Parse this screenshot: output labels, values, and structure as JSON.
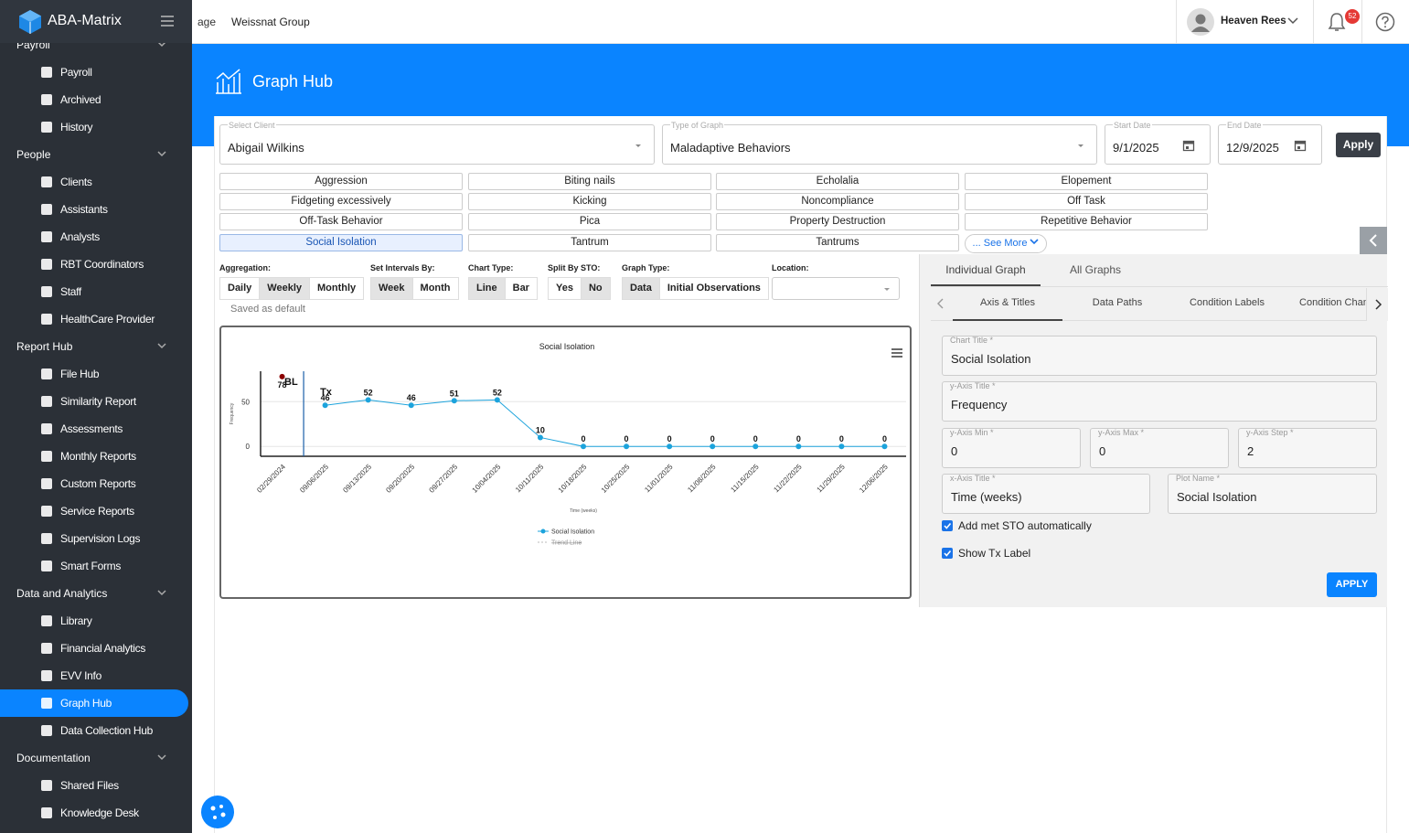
{
  "header": {
    "brand": "ABA-Matrix",
    "broken_image_alt": "age",
    "company": "Weissnat Group",
    "user": "Heaven Rees",
    "notifications": "52"
  },
  "sidebar": [
    {
      "title": "Payroll",
      "items": [
        {
          "label": "Payroll"
        },
        {
          "label": "Archived"
        },
        {
          "label": "History"
        }
      ]
    },
    {
      "title": "People",
      "items": [
        {
          "label": "Clients"
        },
        {
          "label": "Assistants"
        },
        {
          "label": "Analysts"
        },
        {
          "label": "RBT Coordinators"
        },
        {
          "label": "Staff"
        },
        {
          "label": "HealthCare Provider"
        }
      ]
    },
    {
      "title": "Report Hub",
      "items": [
        {
          "label": "File Hub"
        },
        {
          "label": "Similarity Report"
        },
        {
          "label": "Assessments"
        },
        {
          "label": "Monthly Reports"
        },
        {
          "label": "Custom Reports"
        },
        {
          "label": "Service Reports"
        },
        {
          "label": "Supervision Logs"
        },
        {
          "label": "Smart Forms"
        }
      ]
    },
    {
      "title": "Data and Analytics",
      "items": [
        {
          "label": "Library"
        },
        {
          "label": "Financial Analytics"
        },
        {
          "label": "EVV Info"
        },
        {
          "label": "Graph Hub",
          "active": true
        },
        {
          "label": "Data Collection Hub"
        }
      ]
    },
    {
      "title": "Documentation",
      "items": [
        {
          "label": "Shared Files"
        },
        {
          "label": "Knowledge Desk"
        }
      ]
    }
  ],
  "page": {
    "title": "Graph Hub"
  },
  "filters": [
    {
      "label": "Select Client",
      "value": "Abigail Wilkins"
    },
    {
      "label": "Type of Graph",
      "value": "Maladaptive Behaviors"
    },
    {
      "label": "Start Date",
      "value": "9/1/2025"
    },
    {
      "label": "End Date",
      "value": "12/9/2025"
    }
  ],
  "apply": "Apply",
  "behaviors": {
    "items": [
      "Aggression",
      "Biting nails",
      "Echolalia",
      "Elopement",
      "Fidgeting excessively",
      "Kicking",
      "Noncompliance",
      "Off Task",
      "Off-Task Behavior",
      "Pica",
      "Property Destruction",
      "Repetitive Behavior",
      "Social Isolation",
      "Tantrum",
      "Tantrums"
    ],
    "selected": 12,
    "see_more": "... See More"
  },
  "controls": [
    {
      "label": "Aggregation:",
      "options": [
        "Daily",
        "Weekly",
        "Monthly"
      ],
      "selected": 1
    },
    {
      "label": "Set Intervals By:",
      "options": [
        "Week",
        "Month"
      ],
      "selected": 0
    },
    {
      "label": "Chart Type:",
      "options": [
        "Line",
        "Bar"
      ],
      "selected": 0
    },
    {
      "label": "Split By STO:",
      "options": [
        "Yes",
        "No"
      ],
      "selected": 1
    },
    {
      "label": "Graph Type:",
      "options": [
        "Data",
        "Initial Observations"
      ],
      "selected": 0
    },
    {
      "label": "Location:",
      "options": []
    }
  ],
  "saved_note": "Saved as default",
  "chart_data": {
    "type": "line",
    "title": "Social Isolation",
    "y_label": "Frequency",
    "x_label": "Time (weeks)",
    "categories": [
      "02/29/2024",
      "09/06/2025",
      "09/13/2025",
      "09/20/2025",
      "09/27/2025",
      "10/04/2025",
      "10/11/2025",
      "10/18/2025",
      "10/25/2025",
      "11/01/2025",
      "11/08/2025",
      "11/15/2025",
      "11/22/2025",
      "11/29/2025",
      "12/06/2025"
    ],
    "series": [
      {
        "name": "Social Isolation",
        "color": "#1ca3dc",
        "values": [
          78,
          46,
          52,
          46,
          51,
          52,
          10,
          0,
          0,
          0,
          0,
          0,
          0,
          0,
          0
        ]
      }
    ],
    "phases": [
      {
        "label": "BL",
        "color": "#8b0000",
        "count": 1
      },
      {
        "label": "Tx",
        "color": "#1ca3dc",
        "count": 14
      }
    ],
    "hidden_legend": "Trend Line",
    "ylim": [
      -11,
      84
    ],
    "yticks": [
      0,
      50
    ],
    "grid": true
  },
  "panel": {
    "tabs": [
      "Individual Graph",
      "All Graphs"
    ],
    "active_tab": 0,
    "subtabs": [
      "Axis & Titles",
      "Data Paths",
      "Condition Labels",
      "Condition Chang"
    ],
    "active_subtab": 0,
    "fields": [
      {
        "label": "Chart Title *",
        "value": "Social Isolation"
      },
      {
        "label": "y-Axis Title *",
        "value": "Frequency"
      },
      {
        "label": "y-Axis Min *",
        "value": "0"
      },
      {
        "label": "y-Axis Max *",
        "value": "0"
      },
      {
        "label": "y-Axis Step *",
        "value": "2"
      },
      {
        "label": "x-Axis Title *",
        "value": "Time (weeks)"
      },
      {
        "label": "Plot Name *",
        "value": "Social Isolation"
      }
    ],
    "checkboxes": [
      {
        "label": "Add met STO automatically",
        "checked": true
      },
      {
        "label": "Show Tx Label",
        "checked": true
      }
    ],
    "button": "APPLY"
  }
}
